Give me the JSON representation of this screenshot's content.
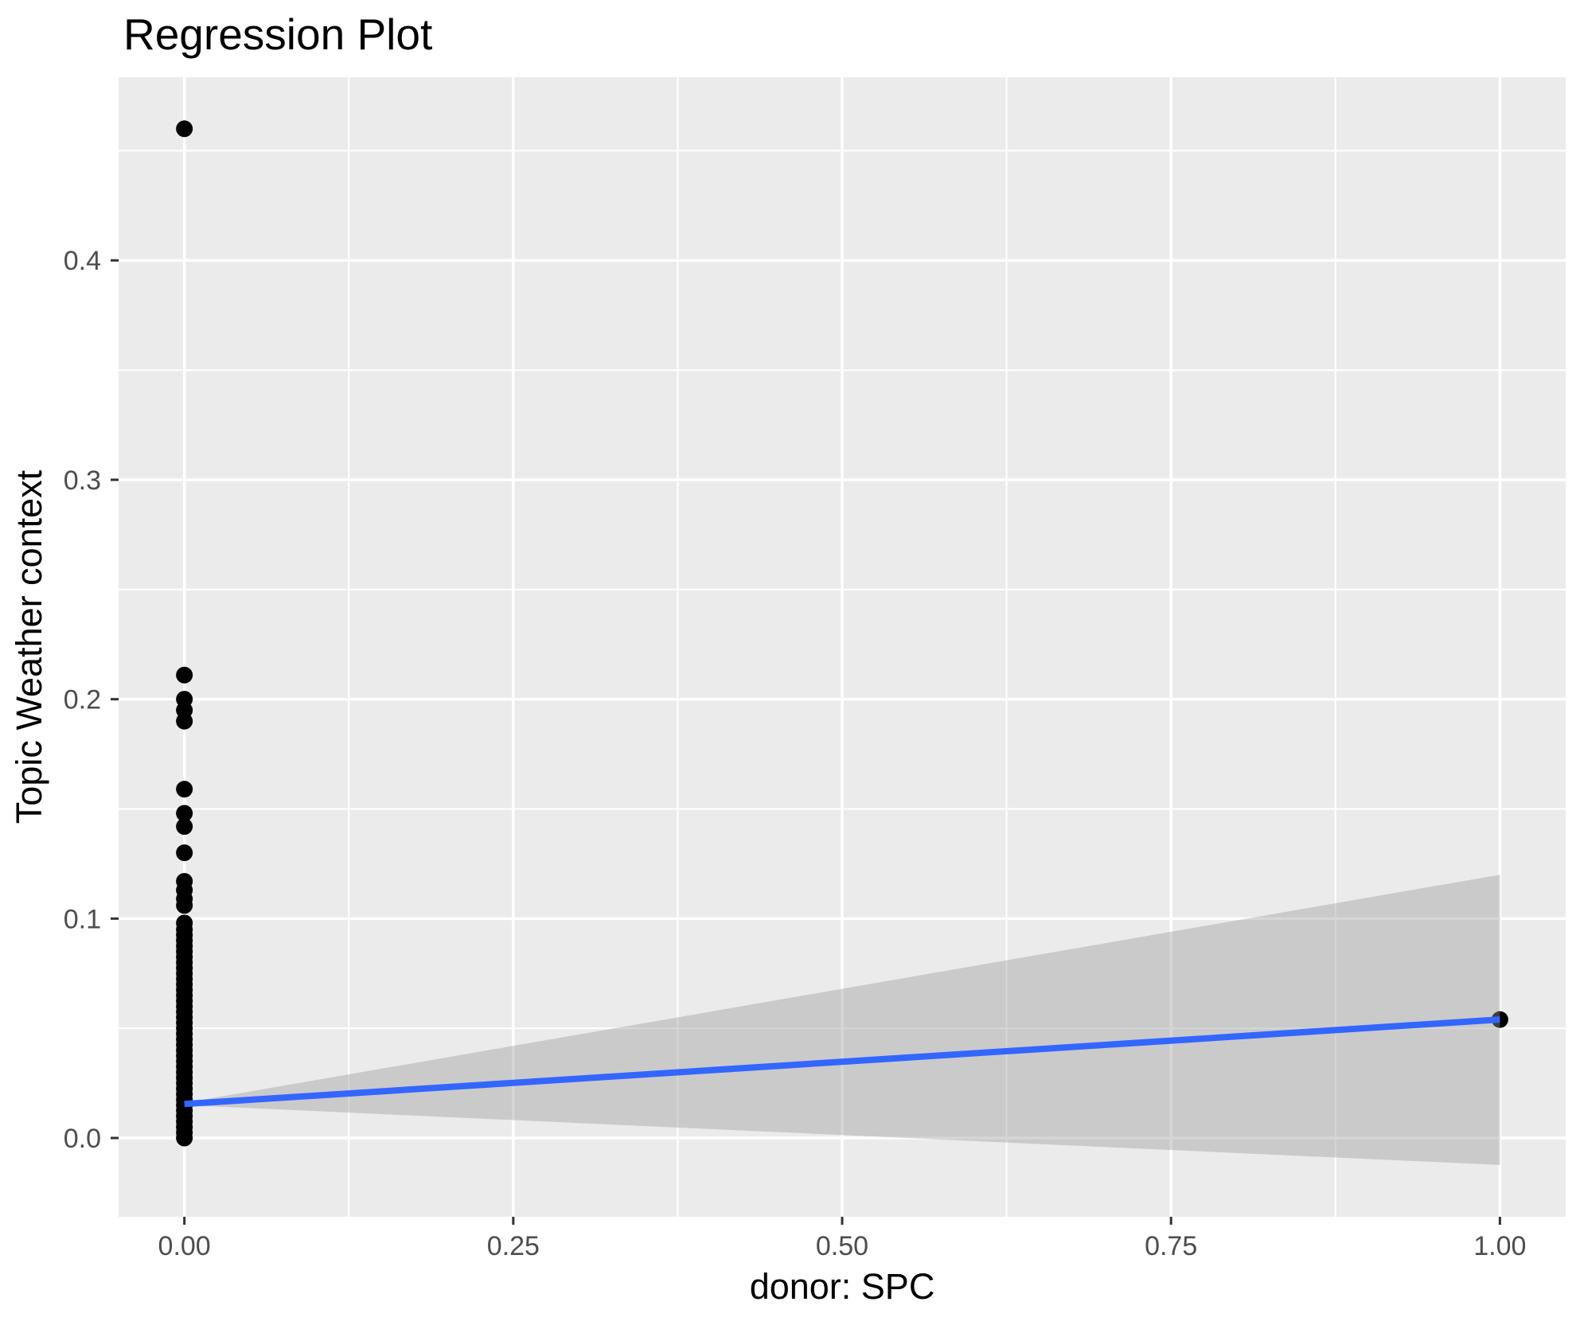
{
  "title": "Regression Plot",
  "chart_data": {
    "type": "scatter",
    "title": "Regression Plot",
    "xlabel": "donor: SPC",
    "ylabel": "Topic Weather context",
    "xlim": [
      -0.05,
      1.05
    ],
    "ylim": [
      -0.0359,
      0.4835
    ],
    "x_major_ticks": [
      0.0,
      0.25,
      0.5,
      0.75,
      1.0
    ],
    "x_tick_labels": [
      "0.00",
      "0.25",
      "0.50",
      "0.75",
      "1.00"
    ],
    "x_minor_ticks": [
      0.125,
      0.375,
      0.625,
      0.875
    ],
    "y_major_ticks": [
      0.0,
      0.1,
      0.2,
      0.3,
      0.4
    ],
    "y_tick_labels": [
      "0.0",
      "0.1",
      "0.2",
      "0.3",
      "0.4"
    ],
    "y_minor_ticks": [
      0.05,
      0.15,
      0.25,
      0.35,
      0.45
    ],
    "grid": true,
    "legend": "none",
    "points": [
      [
        0,
        0.0
      ],
      [
        0,
        0.0025
      ],
      [
        0,
        0.005
      ],
      [
        0,
        0.0075
      ],
      [
        0,
        0.01
      ],
      [
        0,
        0.0125
      ],
      [
        0,
        0.015
      ],
      [
        0,
        0.0175
      ],
      [
        0,
        0.02
      ],
      [
        0,
        0.0225
      ],
      [
        0,
        0.025
      ],
      [
        0,
        0.0275
      ],
      [
        0,
        0.03
      ],
      [
        0,
        0.0325
      ],
      [
        0,
        0.035
      ],
      [
        0,
        0.0375
      ],
      [
        0,
        0.04
      ],
      [
        0,
        0.0425
      ],
      [
        0,
        0.045
      ],
      [
        0,
        0.0475
      ],
      [
        0,
        0.05
      ],
      [
        0,
        0.0525
      ],
      [
        0,
        0.055
      ],
      [
        0,
        0.0575
      ],
      [
        0,
        0.06
      ],
      [
        0,
        0.0625
      ],
      [
        0,
        0.065
      ],
      [
        0,
        0.0675
      ],
      [
        0,
        0.07
      ],
      [
        0,
        0.0725
      ],
      [
        0,
        0.075
      ],
      [
        0,
        0.0775
      ],
      [
        0,
        0.08
      ],
      [
        0,
        0.0825
      ],
      [
        0,
        0.085
      ],
      [
        0,
        0.0875
      ],
      [
        0,
        0.09
      ],
      [
        0,
        0.0925
      ],
      [
        0,
        0.095
      ],
      [
        0,
        0.098
      ],
      [
        0,
        0.106
      ],
      [
        0,
        0.109
      ],
      [
        0,
        0.113
      ],
      [
        0,
        0.117
      ],
      [
        0,
        0.13
      ],
      [
        0,
        0.142
      ],
      [
        0,
        0.148
      ],
      [
        0,
        0.159
      ],
      [
        0,
        0.19
      ],
      [
        0,
        0.195
      ],
      [
        0,
        0.2
      ],
      [
        0,
        0.211
      ],
      [
        0,
        0.46
      ],
      [
        1,
        0.054
      ]
    ],
    "regression_line": {
      "x": [
        0,
        1
      ],
      "y": [
        0.0155,
        0.054
      ]
    },
    "ci_band": {
      "x": [
        0,
        1
      ],
      "upper": [
        0.016,
        0.12
      ],
      "lower": [
        0.015,
        -0.0123
      ]
    },
    "colors": {
      "point": "#000000",
      "line": "#3366FF",
      "band": "rgba(153,153,153,0.4)",
      "panel_bg": "#EBEBEB",
      "grid": "#FFFFFF",
      "tick_mark": "#333333",
      "tick_label": "#4D4D4D",
      "title": "#000000"
    }
  }
}
